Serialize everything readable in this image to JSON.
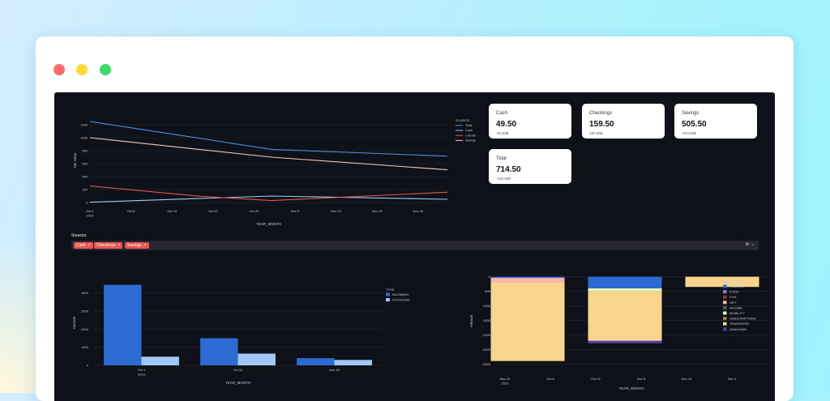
{
  "colors": {
    "app_bg": "#0e1117",
    "total": "#4a90e2",
    "cash": "#9ecbff",
    "checkings": "#e4564f",
    "savings": "#f7c6b8",
    "incoming": "#2d6bd3",
    "outgoing": "#9fc8f7",
    "chip": "#e4564f"
  },
  "metrics": [
    {
      "label": "Cash",
      "value": "49.50",
      "delta": "-50.50$"
    },
    {
      "label": "Checkings",
      "value": "159.50",
      "delta": "160.00$"
    },
    {
      "label": "Savings",
      "value": "505.50",
      "delta": "-194.50$"
    },
    {
      "label": "Total",
      "value": "714.50",
      "delta": "-105.00$"
    }
  ],
  "sources": {
    "label": "Sources",
    "chips": [
      "Cash",
      "Checkings",
      "Savings"
    ],
    "remove_icon": "×",
    "icons": "⊗ ⌄"
  },
  "chart_data": [
    {
      "type": "line",
      "xlabel": "YEAR_MONTH",
      "ylabel": "Net value",
      "x_ticks": [
        "Oct 1\n2023",
        "Oct 8",
        "Oct 15",
        "Oct 22",
        "Oct 29",
        "Nov 5",
        "Nov 12",
        "Nov 19",
        "Nov 26"
      ],
      "x": [
        "2023-10-01",
        "2023-10-20",
        "2023-11-01",
        "2023-12-01"
      ],
      "y_ticks": [
        0,
        200,
        400,
        600,
        800,
        1000,
        1200
      ],
      "ylim": [
        -50,
        1350
      ],
      "legend_title": "SOURCE",
      "series": [
        {
          "name": "Total",
          "x": [
            "2023-10-01",
            "2023-11-01",
            "2023-12-01"
          ],
          "values": [
            1250,
            820,
            715
          ]
        },
        {
          "name": "Cash",
          "x": [
            "2023-10-01",
            "2023-11-01",
            "2023-12-01"
          ],
          "values": [
            5,
            100,
            50
          ]
        },
        {
          "name": "Checkings",
          "x": [
            "2023-10-01",
            "2023-10-20",
            "2023-11-01",
            "2023-12-01"
          ],
          "values": [
            255,
            95,
            30,
            160
          ]
        },
        {
          "name": "Savings",
          "x": [
            "2023-10-01",
            "2023-11-01",
            "2023-12-01"
          ],
          "values": [
            1000,
            700,
            505
          ]
        }
      ]
    },
    {
      "type": "bar",
      "xlabel": "YEAR_MONTH",
      "ylabel": "Amount",
      "categories": [
        "Oct 1\n2023",
        "Oct 31",
        "Nov 30"
      ],
      "y_ticks": [
        0,
        1000,
        2000,
        3000,
        4000
      ],
      "ylim": [
        0,
        4700
      ],
      "legend_title": "TYPE",
      "series": [
        {
          "name": "INCOMING",
          "values": [
            4450,
            1500,
            400
          ]
        },
        {
          "name": "OUTGOING",
          "values": [
            480,
            650,
            300
          ]
        }
      ]
    },
    {
      "type": "bar",
      "stacked": true,
      "xlabel": "YEAR_MONTH",
      "ylabel": "Amount",
      "x_ticks": [
        "Sep 24\n2023",
        "Oct 8",
        "Oct 22",
        "Nov 5",
        "Nov 19",
        "Dec 3"
      ],
      "y_ticks": [
        0,
        -500,
        -1000,
        -1500,
        -2000,
        -2500,
        -3000
      ],
      "ylim": [
        -3150,
        100
      ],
      "legend_title": "CATEGORY",
      "categories": [
        "Oct 1 2023",
        "Oct 31",
        "Nov 30"
      ],
      "series": [
        {
          "name": "FASHION",
          "values": [
            -40,
            -400,
            0
          ]
        },
        {
          "name": "FOOD",
          "values": [
            0,
            0,
            0
          ]
        },
        {
          "name": "FUN",
          "values": [
            0,
            0,
            0
          ]
        },
        {
          "name": "GIFT",
          "values": [
            -150,
            0,
            0
          ]
        },
        {
          "name": "INCOME",
          "values": [
            0,
            0,
            0
          ]
        },
        {
          "name": "MOBILITY",
          "values": [
            0,
            -100,
            0
          ]
        },
        {
          "name": "SUBSCRIPTIONS",
          "values": [
            0,
            0,
            0
          ]
        },
        {
          "name": "TRANSFERS",
          "values": [
            -2700,
            -1700,
            -350
          ]
        },
        {
          "name": "UNKNOWN",
          "values": [
            0,
            -80,
            0
          ]
        }
      ],
      "legend_colors": [
        "#2d6bd3",
        "#5e8fdc",
        "#a0322b",
        "#f5b5ad",
        "#555a66",
        "#e6f7ba",
        "#a57a54",
        "#f7d58e",
        "#5b3fb0"
      ]
    }
  ]
}
